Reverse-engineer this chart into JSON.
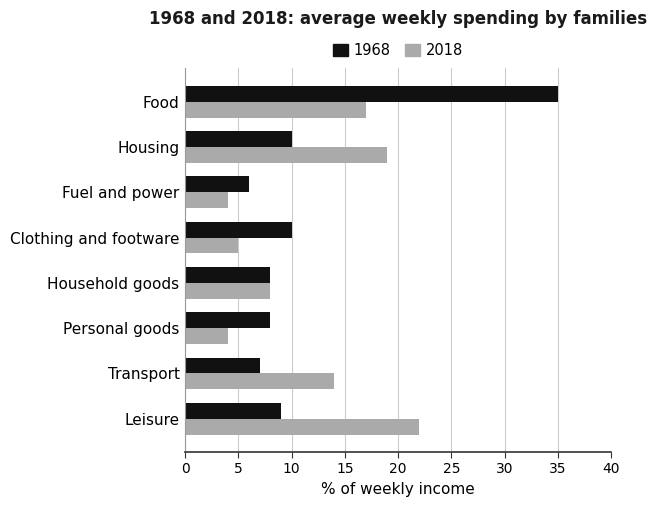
{
  "title": "1968 and 2018: average weekly spending by families",
  "categories": [
    "Food",
    "Housing",
    "Fuel and power",
    "Clothing and footware",
    "Household goods",
    "Personal goods",
    "Transport",
    "Leisure"
  ],
  "values_1968": [
    35,
    10,
    6,
    10,
    8,
    8,
    7,
    9
  ],
  "values_2018": [
    17,
    19,
    4,
    5,
    8,
    4,
    14,
    22
  ],
  "color_1968": "#111111",
  "color_2018": "#aaaaaa",
  "xlabel": "% of weekly income",
  "xlim": [
    0,
    40
  ],
  "xticks": [
    0,
    5,
    10,
    15,
    20,
    25,
    30,
    35,
    40
  ],
  "legend_labels": [
    "1968",
    "2018"
  ],
  "bar_height": 0.35,
  "background_color": "#ffffff",
  "grid_color": "#cccccc"
}
